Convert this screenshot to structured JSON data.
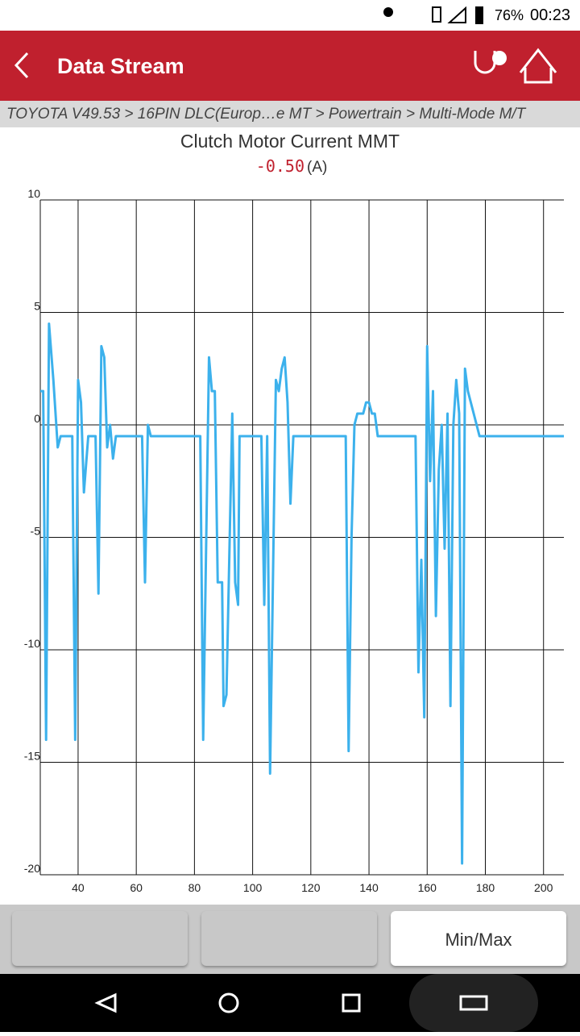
{
  "status_bar": {
    "battery": "76%",
    "time": "00:23"
  },
  "header": {
    "title": "Data Stream"
  },
  "breadcrumb": "TOYOTA V49.53 > 16PIN DLC(Europ…e MT > Powertrain > Multi-Mode M/T",
  "chart_data": {
    "type": "line",
    "title": "Clutch Motor Current MMT",
    "reading": "-0.50",
    "unit": "(A)",
    "x": [
      27,
      28,
      29,
      30,
      31.5,
      33,
      34,
      38,
      39,
      40,
      41,
      42,
      43.5,
      46,
      47,
      48,
      49,
      50,
      51,
      52,
      53,
      62,
      63,
      64,
      65,
      82,
      83,
      85,
      86,
      87,
      88,
      89.5,
      90,
      91,
      93,
      94,
      95,
      95.5,
      103,
      104,
      105,
      106,
      108,
      109,
      110,
      111,
      112,
      113,
      114,
      132,
      133,
      134,
      135,
      136,
      138,
      139,
      140,
      141,
      142,
      143,
      156,
      157,
      158,
      159,
      160,
      161,
      162,
      163,
      164,
      165,
      166,
      167,
      168,
      169,
      170,
      171,
      172,
      173,
      174,
      178,
      207
    ],
    "series": [
      {
        "color": "#3cb1ec",
        "values": [
          1.5,
          1.5,
          -14,
          4.5,
          2,
          -1,
          -0.5,
          -0.5,
          -14,
          2,
          1,
          -3,
          -0.5,
          -0.5,
          -7.5,
          3.5,
          3,
          -1,
          0,
          -1.5,
          -0.5,
          -0.5,
          -7,
          0,
          -0.5,
          -0.5,
          -14,
          3,
          1.5,
          1.5,
          -7,
          -7,
          -12.5,
          -12,
          0.5,
          -7,
          -8,
          -0.5,
          -0.5,
          -8,
          -0.5,
          -15.5,
          2,
          1.5,
          2.5,
          3,
          1,
          -3.5,
          -0.5,
          -0.5,
          -14.5,
          -5,
          0,
          0.5,
          0.5,
          1,
          1,
          0.5,
          0.5,
          -0.5,
          -0.5,
          -11,
          -6,
          -13,
          3.5,
          -2.5,
          1.5,
          -8.5,
          -2,
          0,
          -5.5,
          0.5,
          -12.5,
          0,
          2,
          0.5,
          -19.5,
          2.5,
          1.5,
          -0.5,
          -0.5
        ]
      }
    ],
    "xlim": [
      27,
      207
    ],
    "ylim": [
      -20,
      10
    ],
    "xticks": [
      40,
      60,
      80,
      100,
      120,
      140,
      160,
      180,
      200
    ],
    "yticks": [
      -20,
      -15,
      -10,
      -5,
      0,
      5,
      10
    ],
    "grid": true
  },
  "buttons": [
    "Min/Max"
  ]
}
